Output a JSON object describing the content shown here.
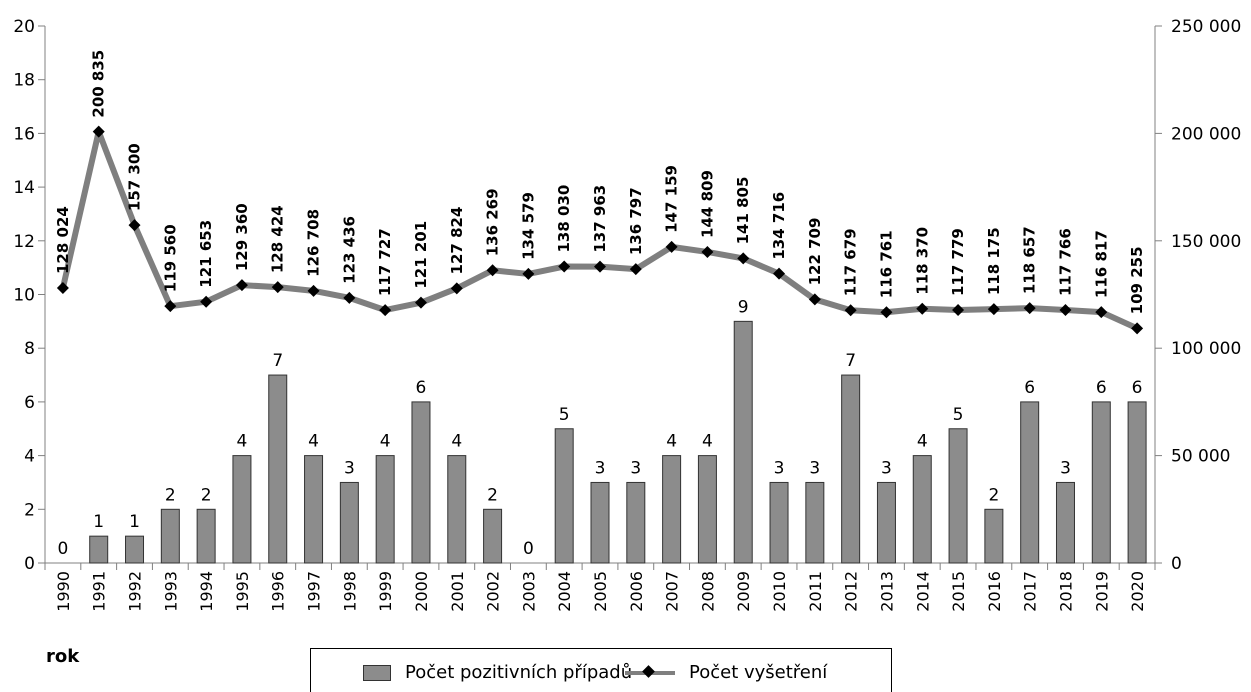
{
  "chart_data": {
    "type": "bar",
    "xlabel": "rok",
    "categories": [
      "1990",
      "1991",
      "1992",
      "1993",
      "1994",
      "1995",
      "1996",
      "1997",
      "1998",
      "1999",
      "2000",
      "2001",
      "2002",
      "2003",
      "2004",
      "2005",
      "2006",
      "2007",
      "2008",
      "2009",
      "2010",
      "2011",
      "2012",
      "2013",
      "2014",
      "2015",
      "2016",
      "2017",
      "2018",
      "2019",
      "2020"
    ],
    "ylim_left": [
      0,
      20
    ],
    "yticks_left": [
      "0",
      "2",
      "4",
      "6",
      "8",
      "10",
      "12",
      "14",
      "16",
      "18",
      "20"
    ],
    "ylim_right": [
      0,
      250000
    ],
    "yticks_right": [
      "0",
      "50 000",
      "100 000",
      "150 000",
      "200 000",
      "250 000"
    ],
    "grid": false,
    "legend_position": "bottom",
    "series": [
      {
        "name": "Počet pozitivních případů",
        "type": "bar",
        "axis": "left",
        "color": "#8c8c8c",
        "values": [
          0,
          1,
          1,
          2,
          2,
          4,
          7,
          4,
          3,
          4,
          6,
          4,
          2,
          0,
          5,
          3,
          3,
          4,
          4,
          9,
          3,
          3,
          7,
          3,
          4,
          5,
          2,
          6,
          3,
          6,
          6
        ],
        "labels": [
          "0",
          "1",
          "1",
          "2",
          "2",
          "4",
          "7",
          "4",
          "3",
          "4",
          "6",
          "4",
          "2",
          "0",
          "5",
          "3",
          "3",
          "4",
          "4",
          "9",
          "3",
          "3",
          "7",
          "3",
          "4",
          "5",
          "2",
          "6",
          "3",
          "6",
          "6"
        ]
      },
      {
        "name": "Počet vyšetření",
        "type": "line",
        "axis": "right",
        "color": "#7f7f7f",
        "marker": "diamond",
        "values": [
          128024,
          200835,
          157300,
          119560,
          121653,
          129360,
          128424,
          126708,
          123436,
          117727,
          121201,
          127824,
          136269,
          134579,
          138030,
          137963,
          136797,
          147159,
          144809,
          141805,
          134716,
          122709,
          117679,
          116761,
          118370,
          117779,
          118175,
          118657,
          117766,
          116817,
          109255
        ],
        "labels": [
          "128 024",
          "200 835",
          "157 300",
          "119 560",
          "121 653",
          "129 360",
          "128 424",
          "126 708",
          "123 436",
          "117 727",
          "121 201",
          "127 824",
          "136 269",
          "134 579",
          "138 030",
          "137 963",
          "136 797",
          "147 159",
          "144 809",
          "141 805",
          "134 716",
          "122 709",
          "117 679",
          "116 761",
          "118 370",
          "117 779",
          "118 175",
          "118 657",
          "117 766",
          "116 817",
          "109 255"
        ]
      }
    ]
  }
}
